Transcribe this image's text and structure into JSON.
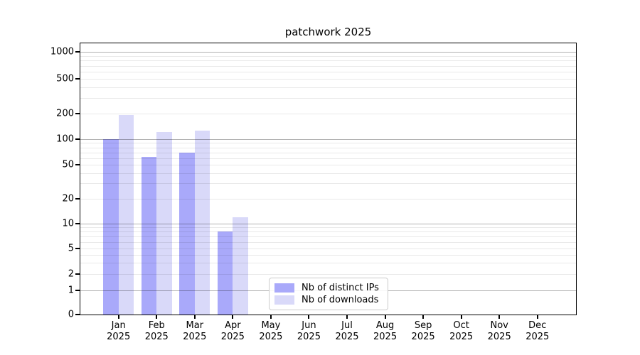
{
  "title": "patchwork 2025",
  "chart_data": {
    "type": "bar",
    "title": "patchwork 2025",
    "xlabel": "",
    "ylabel": "",
    "yscale": "symlog",
    "grid": "both",
    "legend_position": "lower center",
    "year_label": "2025",
    "categories": [
      "Jan",
      "Feb",
      "Mar",
      "Apr",
      "May",
      "Jun",
      "Jul",
      "Aug",
      "Sep",
      "Oct",
      "Nov",
      "Dec"
    ],
    "series": [
      {
        "name": "Nb of distinct IPs",
        "color": "#a9a9fa",
        "values": [
          100,
          62,
          70,
          8,
          0,
          0,
          0,
          0,
          0,
          0,
          0,
          0
        ]
      },
      {
        "name": "Nb of downloads",
        "color": "#d9d9f9",
        "values": [
          192,
          121,
          125,
          12,
          0,
          0,
          0,
          0,
          0,
          0,
          0,
          0
        ]
      }
    ],
    "yticks": [
      0,
      1,
      2,
      5,
      10,
      20,
      50,
      100,
      200,
      500,
      1000
    ],
    "ylim": [
      0,
      1300
    ],
    "minor_gridline_values": [
      2,
      3,
      4,
      5,
      6,
      7,
      8,
      9,
      20,
      30,
      40,
      50,
      60,
      70,
      80,
      90,
      200,
      300,
      400,
      500,
      600,
      700,
      800,
      900
    ],
    "major_gridline_values": [
      1,
      10,
      100,
      1000
    ]
  },
  "colors": {
    "bar_distinct_ips": "#a9a9fa",
    "bar_downloads": "#d9d9f9",
    "grid_major": "#b3b3b3",
    "grid_minor": "#e8e8e8",
    "spine": "#000000",
    "legend_border": "#cccccc",
    "background": "#ffffff"
  }
}
